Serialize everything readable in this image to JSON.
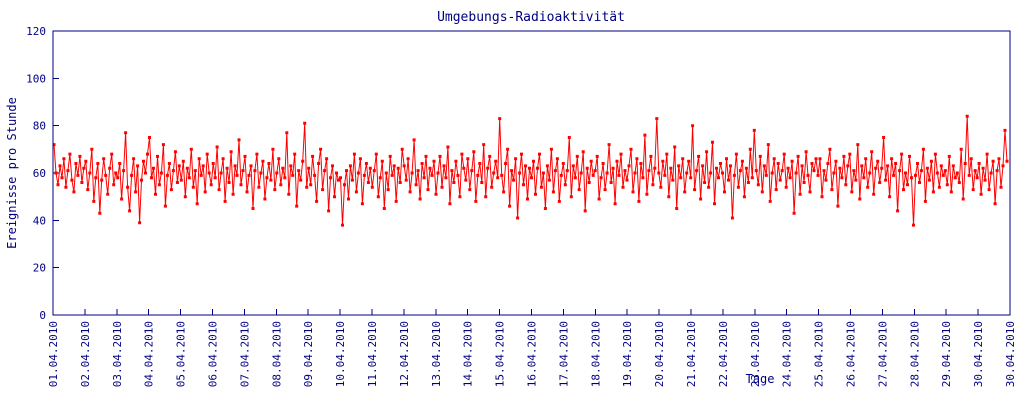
{
  "colors": {
    "axis": "#000080",
    "series": "#ff0000",
    "background": "#ffffff"
  },
  "chart_data": {
    "type": "line",
    "title": "Umgebungs-Radioaktivität",
    "xlabel": "Tage",
    "ylabel": "Ereignisse pro Stunde",
    "ylim": [
      0,
      120
    ],
    "y_ticks": [
      0,
      20,
      40,
      60,
      80,
      100,
      120
    ],
    "x_tick_labels": [
      "01.04.2010",
      "02.04.2010",
      "03.04.2010",
      "04.04.2010",
      "05.04.2010",
      "06.04.2010",
      "07.04.2010",
      "08.04.2010",
      "09.04.2010",
      "10.04.2010",
      "11.04.2010",
      "12.04.2010",
      "13.04.2010",
      "14.04.2010",
      "15.04.2010",
      "16.04.2010",
      "17.04.2010",
      "18.04.2010",
      "19.04.2010",
      "20.04.2010",
      "21.04.2010",
      "22.04.2010",
      "23.04.2010",
      "24.04.2010",
      "25.04.2010",
      "26.04.2010",
      "27.04.2010",
      "28.04.2010",
      "29.04.2010",
      "30.04.2010",
      "30.04.2010"
    ],
    "grid": false,
    "legend": "none",
    "marker": "square",
    "points_per_day": 16,
    "series": [
      {
        "name": "Ereignisse pro Stunde",
        "values": [
          72,
          60,
          55,
          63,
          58,
          66,
          54,
          61,
          68,
          57,
          52,
          64,
          59,
          67,
          56,
          62,
          65,
          53,
          60,
          70,
          48,
          58,
          64,
          43,
          57,
          66,
          59,
          51,
          62,
          68,
          55,
          60,
          58,
          64,
          49,
          61,
          77,
          54,
          44,
          59,
          66,
          52,
          63,
          39,
          57,
          65,
          60,
          68,
          75,
          58,
          62,
          51,
          67,
          55,
          60,
          72,
          46,
          59,
          64,
          53,
          61,
          69,
          56,
          63,
          57,
          65,
          50,
          62,
          58,
          70,
          54,
          61,
          47,
          66,
          59,
          63,
          52,
          68,
          60,
          55,
          64,
          58,
          71,
          53,
          60,
          66,
          48,
          62,
          56,
          69,
          51,
          63,
          59,
          74,
          55,
          61,
          67,
          52,
          59,
          63,
          45,
          61,
          68,
          54,
          60,
          65,
          49,
          58,
          64,
          57,
          70,
          53,
          60,
          66,
          55,
          62,
          58,
          77,
          51,
          63,
          59,
          68,
          46,
          61,
          57,
          65,
          81,
          54,
          62,
          55,
          67,
          59,
          48,
          64,
          70,
          53,
          61,
          66,
          44,
          58,
          63,
          50,
          60,
          57,
          58,
          38,
          55,
          61,
          49,
          63,
          57,
          68,
          52,
          60,
          66,
          47,
          59,
          64,
          56,
          62,
          54,
          61,
          68,
          50,
          58,
          65,
          45,
          60,
          53,
          67,
          59,
          63,
          48,
          62,
          56,
          70,
          63,
          57,
          66,
          52,
          60,
          74,
          55,
          61,
          49,
          64,
          58,
          67,
          53,
          62,
          59,
          65,
          51,
          60,
          67,
          54,
          63,
          58,
          71,
          47,
          61,
          56,
          65,
          59,
          50,
          68,
          62,
          57,
          66,
          53,
          61,
          69,
          48,
          59,
          64,
          56,
          72,
          50,
          62,
          67,
          54,
          60,
          65,
          58,
          83,
          59,
          52,
          64,
          70,
          46,
          61,
          57,
          66,
          41,
          60,
          68,
          55,
          63,
          49,
          62,
          58,
          65,
          51,
          62,
          68,
          54,
          60,
          45,
          63,
          57,
          70,
          52,
          61,
          66,
          48,
          59,
          64,
          55,
          61,
          75,
          50,
          63,
          58,
          67,
          53,
          60,
          69,
          44,
          62,
          56,
          65,
          59,
          61,
          67,
          49,
          58,
          64,
          53,
          60,
          72,
          56,
          62,
          47,
          65,
          59,
          68,
          54,
          61,
          57,
          63,
          70,
          52,
          60,
          66,
          48,
          64,
          58,
          76,
          51,
          61,
          67,
          55,
          62,
          83,
          60,
          54,
          65,
          59,
          68,
          50,
          62,
          57,
          71,
          45,
          63,
          58,
          66,
          52,
          60,
          65,
          58,
          80,
          53,
          61,
          67,
          49,
          63,
          56,
          69,
          54,
          60,
          73,
          47,
          62,
          58,
          64,
          60,
          52,
          66,
          57,
          63,
          41,
          59,
          68,
          54,
          61,
          65,
          50,
          62,
          56,
          70,
          58,
          78,
          61,
          55,
          67,
          52,
          63,
          59,
          72,
          48,
          60,
          66,
          53,
          64,
          57,
          61,
          68,
          54,
          62,
          58,
          65,
          43,
          60,
          67,
          51,
          63,
          56,
          69,
          59,
          52,
          64,
          61,
          66,
          59,
          66,
          50,
          61,
          57,
          64,
          70,
          53,
          60,
          65,
          46,
          62,
          58,
          67,
          55,
          63,
          68,
          52,
          61,
          57,
          72,
          49,
          63,
          58,
          66,
          54,
          60,
          69,
          51,
          62,
          65,
          56,
          62,
          75,
          57,
          63,
          50,
          66,
          59,
          64,
          44,
          61,
          68,
          53,
          60,
          55,
          67,
          58,
          38,
          59,
          64,
          56,
          61,
          70,
          48,
          62,
          57,
          65,
          52,
          68,
          60,
          54,
          63,
          59,
          61,
          55,
          67,
          52,
          63,
          58,
          60,
          56,
          70,
          49,
          64,
          84,
          59,
          66,
          53,
          61,
          58,
          64,
          51,
          62,
          57,
          68,
          53,
          60,
          65,
          47,
          61,
          66,
          54,
          63,
          78,
          65
        ]
      }
    ]
  }
}
